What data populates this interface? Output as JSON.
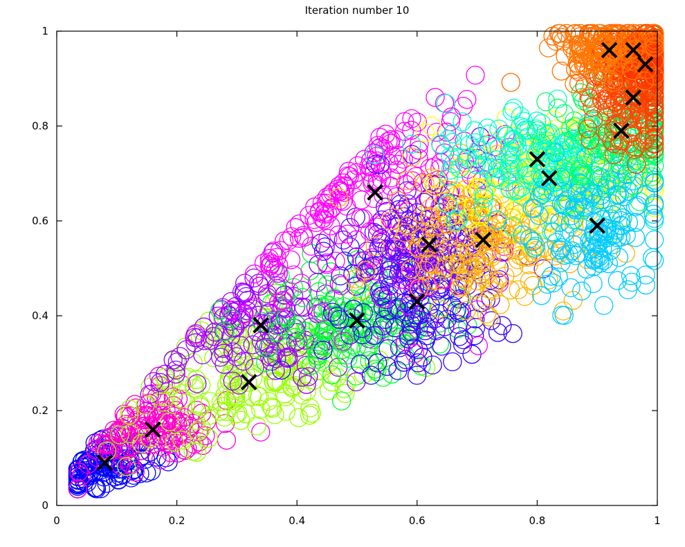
{
  "chart_data": {
    "type": "scatter",
    "title": "Iteration number 10",
    "xlabel": "",
    "ylabel": "",
    "xlim": [
      0,
      1
    ],
    "ylim": [
      0,
      1
    ],
    "x_ticks": [
      {
        "value": 0,
        "label": "0"
      },
      {
        "value": 0.2,
        "label": "0.2"
      },
      {
        "value": 0.4,
        "label": "0.4"
      },
      {
        "value": 0.6,
        "label": "0.6"
      },
      {
        "value": 0.8,
        "label": "0.8"
      },
      {
        "value": 1,
        "label": "1"
      }
    ],
    "y_ticks": [
      {
        "value": 0,
        "label": "0"
      },
      {
        "value": 0.2,
        "label": "0.2"
      },
      {
        "value": 0.4,
        "label": "0.4"
      },
      {
        "value": 0.6,
        "label": "0.6"
      },
      {
        "value": 0.8,
        "label": "0.8"
      },
      {
        "value": 1,
        "label": "1"
      }
    ],
    "grid": false,
    "legend": "none",
    "marker_style": "open-circle",
    "clusters": [
      {
        "color": "#0000ff",
        "centroid": [
          0.08,
          0.09
        ],
        "spread": [
          0.04,
          0.03
        ],
        "count": 120
      },
      {
        "color": "#ff00cc",
        "centroid": [
          0.16,
          0.16
        ],
        "spread": [
          0.06,
          0.035
        ],
        "count": 140
      },
      {
        "color": "#99ff00",
        "centroid": [
          0.32,
          0.26
        ],
        "spread": [
          0.09,
          0.07
        ],
        "count": 180
      },
      {
        "color": "#9900ff",
        "centroid": [
          0.34,
          0.38
        ],
        "spread": [
          0.08,
          0.06
        ],
        "count": 150
      },
      {
        "color": "#00ff33",
        "centroid": [
          0.5,
          0.39
        ],
        "spread": [
          0.08,
          0.06
        ],
        "count": 160
      },
      {
        "color": "#3300ff",
        "centroid": [
          0.6,
          0.43
        ],
        "spread": [
          0.07,
          0.08
        ],
        "count": 150
      },
      {
        "color": "#ff00ff",
        "centroid": [
          0.53,
          0.66
        ],
        "spread": [
          0.1,
          0.12
        ],
        "count": 220
      },
      {
        "color": "#6600ff",
        "centroid": [
          0.62,
          0.55
        ],
        "spread": [
          0.07,
          0.07
        ],
        "count": 130
      },
      {
        "color": "#ffb300",
        "centroid": [
          0.71,
          0.56
        ],
        "spread": [
          0.08,
          0.07
        ],
        "count": 200
      },
      {
        "color": "#ffff00",
        "centroid": [
          0.82,
          0.69
        ],
        "spread": [
          0.08,
          0.06
        ],
        "count": 180
      },
      {
        "color": "#00ffcc",
        "centroid": [
          0.8,
          0.73
        ],
        "spread": [
          0.08,
          0.06
        ],
        "count": 170
      },
      {
        "color": "#00ccff",
        "centroid": [
          0.9,
          0.59
        ],
        "spread": [
          0.07,
          0.08
        ],
        "count": 170
      },
      {
        "color": "#00ff66",
        "centroid": [
          0.94,
          0.79
        ],
        "spread": [
          0.05,
          0.07
        ],
        "count": 140
      },
      {
        "color": "#ff4400",
        "centroid": [
          0.96,
          0.86
        ],
        "spread": [
          0.04,
          0.05
        ],
        "count": 150
      },
      {
        "color": "#ff6600",
        "centroid": [
          0.96,
          0.96
        ],
        "spread": [
          0.06,
          0.04
        ],
        "count": 170
      },
      {
        "color": "#ff3300",
        "centroid": [
          0.98,
          0.93
        ],
        "spread": [
          0.03,
          0.03
        ],
        "count": 100
      },
      {
        "color": "#ff7700",
        "centroid": [
          0.92,
          0.96
        ],
        "spread": [
          0.05,
          0.03
        ],
        "count": 90
      }
    ],
    "centroids": [
      [
        0.08,
        0.09
      ],
      [
        0.16,
        0.16
      ],
      [
        0.32,
        0.26
      ],
      [
        0.34,
        0.38
      ],
      [
        0.5,
        0.39
      ],
      [
        0.6,
        0.43
      ],
      [
        0.53,
        0.66
      ],
      [
        0.62,
        0.55
      ],
      [
        0.71,
        0.56
      ],
      [
        0.82,
        0.69
      ],
      [
        0.8,
        0.73
      ],
      [
        0.9,
        0.59
      ],
      [
        0.94,
        0.79
      ],
      [
        0.96,
        0.86
      ],
      [
        0.96,
        0.96
      ],
      [
        0.98,
        0.93
      ],
      [
        0.92,
        0.96
      ]
    ],
    "centroid_marker": {
      "shape": "x",
      "color": "#000000"
    }
  }
}
